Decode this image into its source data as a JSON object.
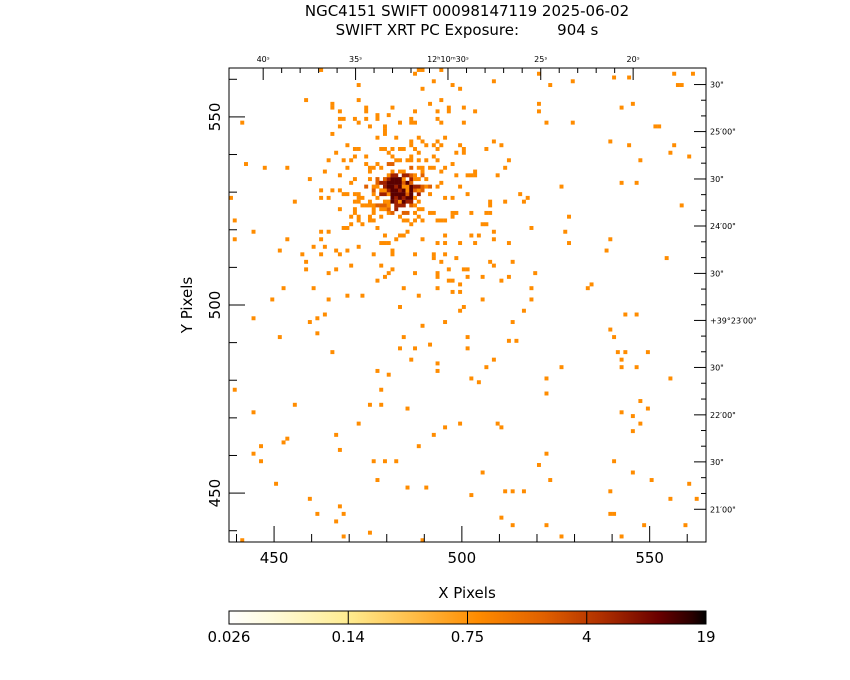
{
  "header": {
    "title": "NGC4151 SWIFT 00098147119 2025-06-02",
    "subtitle": "SWIFT XRT PC Exposure:        904 s"
  },
  "chart_data": {
    "type": "heatmap",
    "xlabel": "X Pixels",
    "ylabel": "Y Pixels",
    "xlim": [
      438,
      565
    ],
    "ylim": [
      437,
      563
    ],
    "x_ticks": [
      450,
      500,
      550
    ],
    "y_ticks": [
      450,
      500,
      550
    ],
    "ra_ticks": [
      {
        "label": "40ˢ",
        "x": 447.1
      },
      {
        "label": "35ˢ",
        "x": 471.7
      },
      {
        "label": "12ʰ10ᵐ30ˢ",
        "x": 496.3
      },
      {
        "label": "25ˢ",
        "x": 521.0
      },
      {
        "label": "20ˢ",
        "x": 545.6
      }
    ],
    "dec_ticks": [
      {
        "label": "30\"",
        "y": 558.6
      },
      {
        "label": "25′00\"",
        "y": 546.1
      },
      {
        "label": "30\"",
        "y": 533.5
      },
      {
        "label": "24′00\"",
        "y": 521.0
      },
      {
        "label": "30\"",
        "y": 508.4
      },
      {
        "label": "+39°23′00\"",
        "y": 495.9
      },
      {
        "label": "30\"",
        "y": 483.4
      },
      {
        "label": "22′00\"",
        "y": 470.8
      },
      {
        "label": "30\"",
        "y": 458.3
      },
      {
        "label": "21′00\"",
        "y": 445.7
      }
    ],
    "source_center": {
      "x": 483.5,
      "y": 530.5
    },
    "colorbar": {
      "scale": "log",
      "range": [
        0.026,
        19
      ],
      "tick_labels": [
        "0.026",
        "0.14",
        "0.75",
        "4",
        "19"
      ]
    },
    "colors": {
      "low": "#ff8c00",
      "mid": "#e06000",
      "high": "#a02000",
      "max": "#5a0000"
    }
  }
}
